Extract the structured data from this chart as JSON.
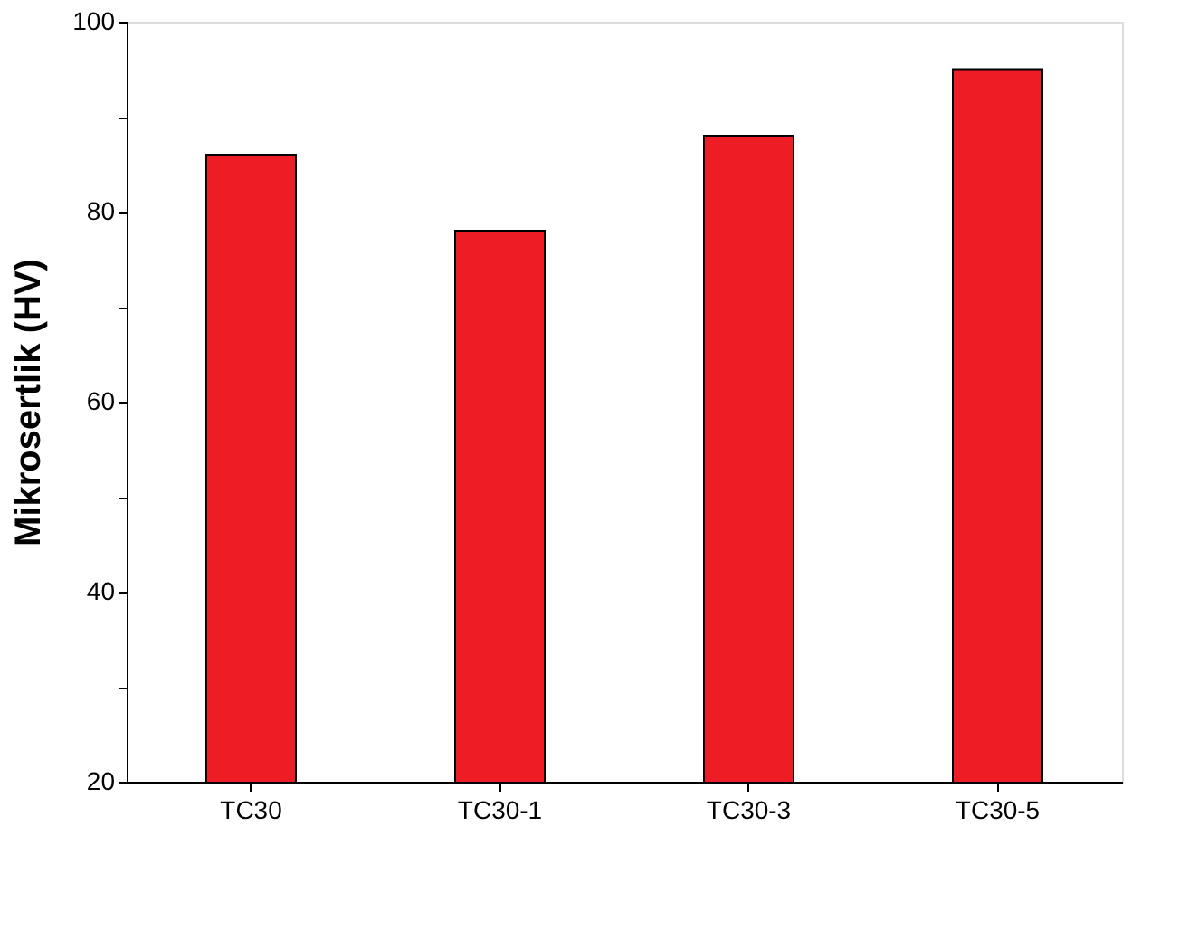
{
  "chart_data": {
    "type": "bar",
    "ylabel": "Mikrosertlik (HV)",
    "categories": [
      "TC30",
      "TC30-1",
      "TC30-3",
      "TC30-5"
    ],
    "values": [
      86,
      78,
      88,
      95
    ],
    "color": "#ee1c25",
    "ylim": [
      20,
      100
    ],
    "yticks": [
      20,
      {
        "value": 30,
        "label": null
      },
      40,
      {
        "value": 50,
        "label": null
      },
      60,
      {
        "value": 70,
        "label": null
      },
      80,
      {
        "value": 90,
        "label": null
      },
      100
    ],
    "grid": false
  }
}
